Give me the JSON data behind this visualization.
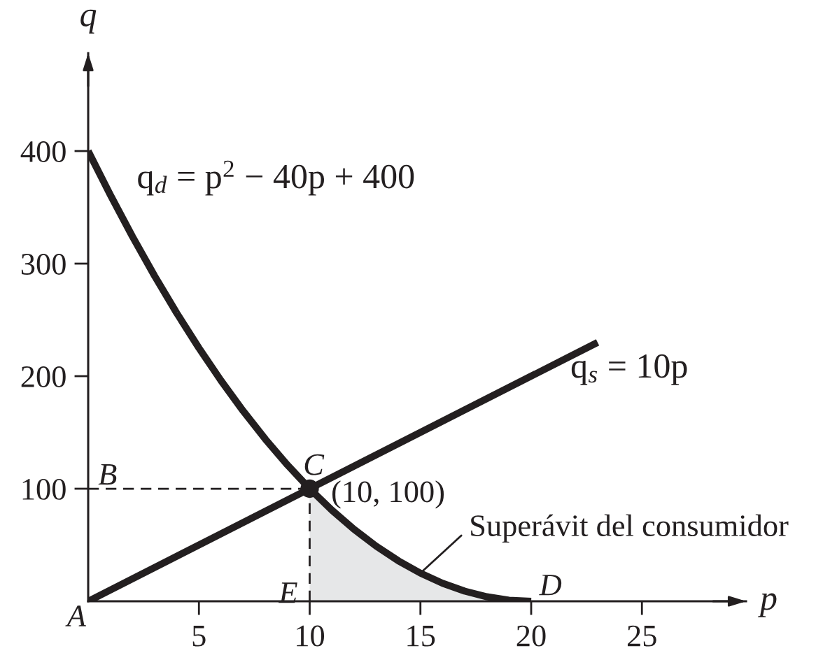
{
  "chart_data": {
    "type": "line",
    "xlabel": "p",
    "ylabel": "q",
    "xlim": [
      0,
      29.7
    ],
    "ylim": [
      0,
      487
    ],
    "xticks": [
      5,
      10,
      15,
      20,
      25
    ],
    "yticks": [
      100,
      200,
      300,
      400
    ],
    "series": [
      {
        "type": "area",
        "color": "#e6e7e8",
        "x": [
          10,
          11,
          12,
          13,
          14,
          15,
          16,
          17,
          18,
          19,
          20
        ],
        "values": [
          100,
          81,
          64,
          49,
          36,
          25,
          16,
          9,
          4,
          1,
          0
        ]
      },
      {
        "name": "q$_{d}$ = p$^{2}$ − 40p + 400",
        "color": "#231f20",
        "x": [
          0,
          1,
          2,
          3,
          4,
          5,
          6,
          7,
          8,
          9,
          10,
          11,
          12,
          13,
          14,
          15,
          16,
          17,
          18,
          19,
          20
        ],
        "values": [
          400,
          361,
          324,
          289,
          256,
          225,
          196,
          169,
          144,
          121,
          100,
          81,
          64,
          49,
          36,
          25,
          16,
          9,
          4,
          1,
          0
        ]
      },
      {
        "name": "q$_{s}$ = 10p",
        "color": "#231f20",
        "x": [
          0,
          23
        ],
        "values": [
          0,
          230
        ]
      },
      {
        "color": "#231f20",
        "line_style": "dashed",
        "x": [
          0,
          10
        ],
        "values": [
          100,
          100
        ]
      },
      {
        "color": "#231f20",
        "line_style": "dashed",
        "x": [
          10,
          10
        ],
        "values": [
          0,
          100
        ]
      },
      {
        "type": "scatter",
        "color": "#231f20",
        "marker": "circle",
        "x": [
          10
        ],
        "values": [
          100
        ]
      }
    ],
    "annotations": [
      {
        "text": "A",
        "x": 0,
        "y": 0
      },
      {
        "text": "B",
        "x": 0,
        "y": 100
      },
      {
        "text": "C",
        "x": 10,
        "y": 100
      },
      {
        "text": "(10, 100)",
        "x": 10,
        "y": 100
      },
      {
        "text": "E",
        "x": 10,
        "y": 0
      },
      {
        "text": "D",
        "x": 20,
        "y": 0
      },
      {
        "text": "Superávit del consumidor",
        "x": 15,
        "y": 25
      }
    ]
  }
}
